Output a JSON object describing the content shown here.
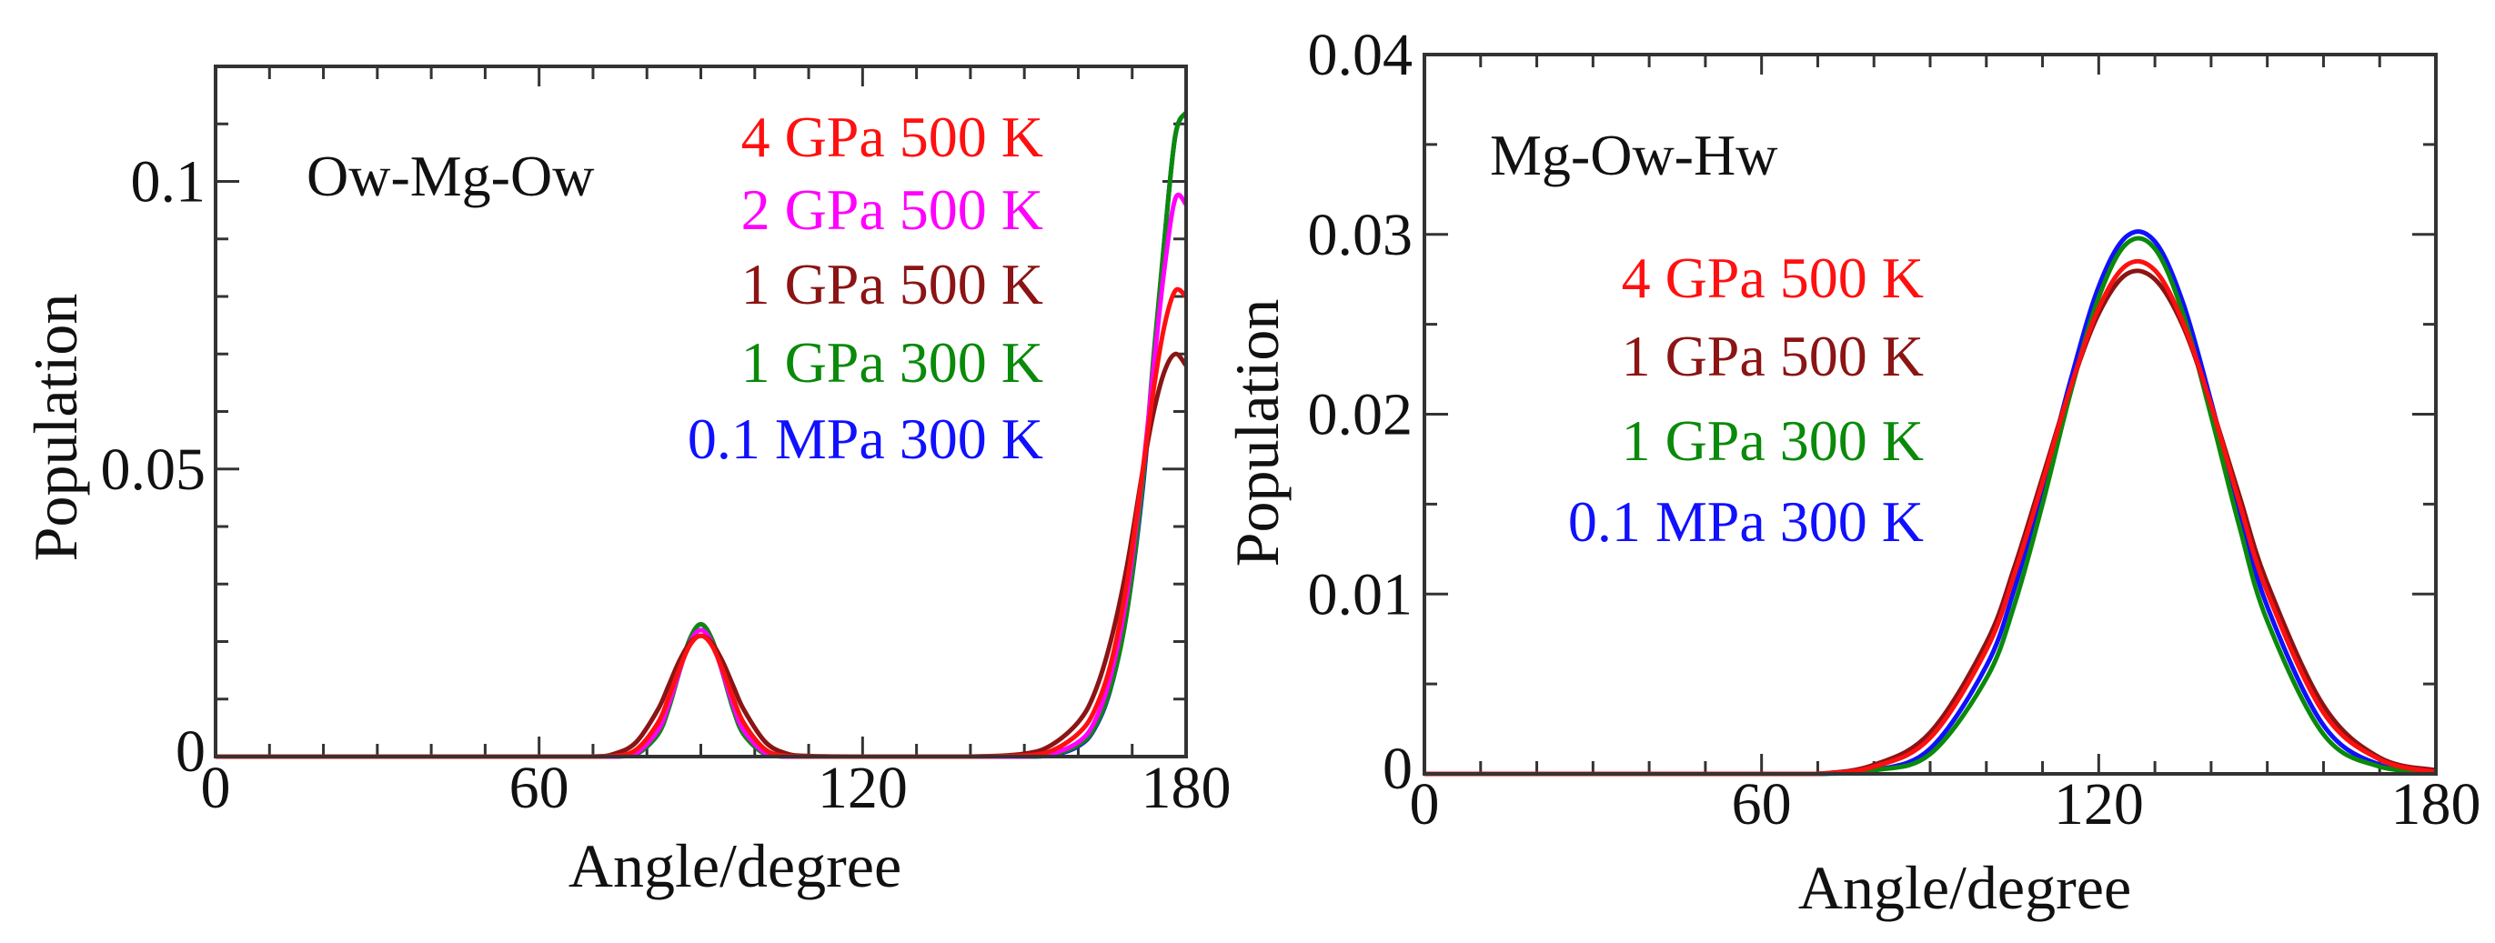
{
  "colors": {
    "4 GPa 500 K": "#ff1010",
    "2 GPa 500 K": "#ff00ff",
    "1 GPa 500 K": "#8b1414",
    "1 GPa 300 K": "#0a8a0a",
    "0.1 MPa 300 K": "#1010ff",
    "axis": "#333333"
  },
  "chart_data": [
    {
      "type": "line",
      "title": "Ow-Mg-Ow",
      "xlabel": "Angle/degree",
      "ylabel": "Population",
      "xlim": [
        0,
        180
      ],
      "ylim": [
        0,
        0.12
      ],
      "xticks": [
        0,
        60,
        120,
        180
      ],
      "xtick_labels": [
        "0",
        "60",
        "120",
        "180"
      ],
      "xminor_step": 10,
      "yticks": [
        0,
        0.05,
        0.1
      ],
      "ytick_labels": [
        "0",
        "0.05",
        "0.1"
      ],
      "yminor_step": 0.01,
      "grid": false,
      "legend_placement": "top-right",
      "x": [
        0,
        60,
        70,
        74,
        78,
        82,
        84,
        86,
        88,
        90,
        92,
        94,
        96,
        98,
        102,
        106,
        110,
        120,
        140,
        150,
        155,
        160,
        163,
        166,
        169,
        172,
        174,
        176,
        178,
        180
      ],
      "series": [
        {
          "name": "0.1 MPa 300 K",
          "values": [
            0,
            0,
            0,
            0,
            0.0004,
            0.0038,
            0.0083,
            0.0147,
            0.0205,
            0.023,
            0.0205,
            0.0147,
            0.0083,
            0.0038,
            0.0004,
            0,
            0,
            0,
            0,
            0,
            0.0002,
            0.0018,
            0.0048,
            0.0118,
            0.025,
            0.047,
            0.069,
            0.09,
            0.108,
            0.112
          ]
        },
        {
          "name": "1 GPa 300 K",
          "values": [
            0,
            0,
            0,
            0,
            0.0004,
            0.0038,
            0.0083,
            0.0147,
            0.0205,
            0.023,
            0.0205,
            0.0147,
            0.0083,
            0.0038,
            0.0004,
            0,
            0,
            0,
            0,
            0,
            0.0003,
            0.002,
            0.005,
            0.012,
            0.025,
            0.048,
            0.07,
            0.09,
            0.108,
            0.112
          ]
        },
        {
          "name": "2 GPa 500 K",
          "values": [
            0,
            0,
            0,
            0,
            0.0006,
            0.0045,
            0.009,
            0.0148,
            0.0199,
            0.022,
            0.0199,
            0.0148,
            0.009,
            0.0045,
            0.0006,
            0,
            0,
            0,
            0,
            0,
            0.0005,
            0.0025,
            0.006,
            0.014,
            0.028,
            0.05,
            0.068,
            0.085,
            0.097,
            0.096
          ]
        },
        {
          "name": "1 GPa 500 K",
          "values": [
            0,
            0,
            0,
            0.0005,
            0.0025,
            0.0081,
            0.0123,
            0.0166,
            0.0198,
            0.021,
            0.0198,
            0.0166,
            0.0123,
            0.0081,
            0.0025,
            0.0005,
            0.0001,
            0,
            0,
            0.0005,
            0.002,
            0.006,
            0.011,
            0.02,
            0.033,
            0.05,
            0.06,
            0.067,
            0.07,
            0.068
          ]
        },
        {
          "name": "4 GPa 500 K",
          "values": [
            0,
            0,
            0,
            0.0001,
            0.0012,
            0.0058,
            0.0102,
            0.0152,
            0.0194,
            0.021,
            0.0194,
            0.0152,
            0.0102,
            0.0058,
            0.0012,
            0.0001,
            0,
            0,
            0,
            0.0002,
            0.001,
            0.004,
            0.008,
            0.016,
            0.03,
            0.05,
            0.064,
            0.075,
            0.081,
            0.08
          ]
        }
      ],
      "legend_order": [
        "4 GPa 500 K",
        "2 GPa 500 K",
        "1 GPa 500 K",
        "1 GPa 300 K",
        "0.1 MPa 300 K"
      ]
    },
    {
      "type": "line",
      "title": "Mg-Ow-Hw",
      "xlabel": "Angle/degree",
      "ylabel": "Population",
      "xlim": [
        0,
        180
      ],
      "ylim": [
        0,
        0.04
      ],
      "xticks": [
        0,
        60,
        120,
        180
      ],
      "xtick_labels": [
        "0",
        "60",
        "120",
        "180"
      ],
      "xminor_step": 10,
      "yticks": [
        0,
        0.01,
        0.02,
        0.03,
        0.04
      ],
      "ytick_labels": [
        "0",
        "0.01",
        "0.02",
        "0.03",
        "0.04"
      ],
      "yminor_step": 0.005,
      "grid": false,
      "legend_placement": "top-left",
      "x": [
        0,
        60,
        70,
        80,
        90,
        100,
        105,
        110,
        115,
        120,
        125,
        130,
        135,
        140,
        145,
        150,
        160,
        170,
        180
      ],
      "series": [
        {
          "name": "0.1 MPa 300 K",
          "values": [
            0,
            0,
            0,
            0.0002,
            0.0014,
            0.006,
            0.0103,
            0.0159,
            0.0219,
            0.0271,
            0.0299,
            0.0296,
            0.0262,
            0.0207,
            0.0147,
            0.0093,
            0.0027,
            0.0005,
            0.0001
          ]
        },
        {
          "name": "1 GPa 300 K",
          "values": [
            0,
            0,
            0,
            0.0002,
            0.0011,
            0.0053,
            0.0094,
            0.015,
            0.0212,
            0.0265,
            0.0295,
            0.0292,
            0.0256,
            0.0199,
            0.0138,
            0.0085,
            0.0022,
            0.0004,
            0.0001
          ]
        },
        {
          "name": "1 GPa 500 K",
          "values": [
            0,
            0,
            0,
            0.0005,
            0.0023,
            0.0073,
            0.0115,
            0.0165,
            0.0215,
            0.0256,
            0.0278,
            0.0275,
            0.0249,
            0.0205,
            0.0155,
            0.0106,
            0.0038,
            0.0009,
            0.0002
          ]
        },
        {
          "name": "4 GPa 500 K",
          "values": [
            0,
            0,
            0,
            0.0004,
            0.002,
            0.0069,
            0.0111,
            0.0162,
            0.0215,
            0.0259,
            0.0283,
            0.028,
            0.0251,
            0.0205,
            0.0151,
            0.0101,
            0.0034,
            0.0008,
            0.0001
          ]
        }
      ],
      "legend_order": [
        "4 GPa 500 K",
        "1 GPa 500 K",
        "1 GPa 300 K",
        "0.1 MPa 300 K"
      ]
    }
  ]
}
